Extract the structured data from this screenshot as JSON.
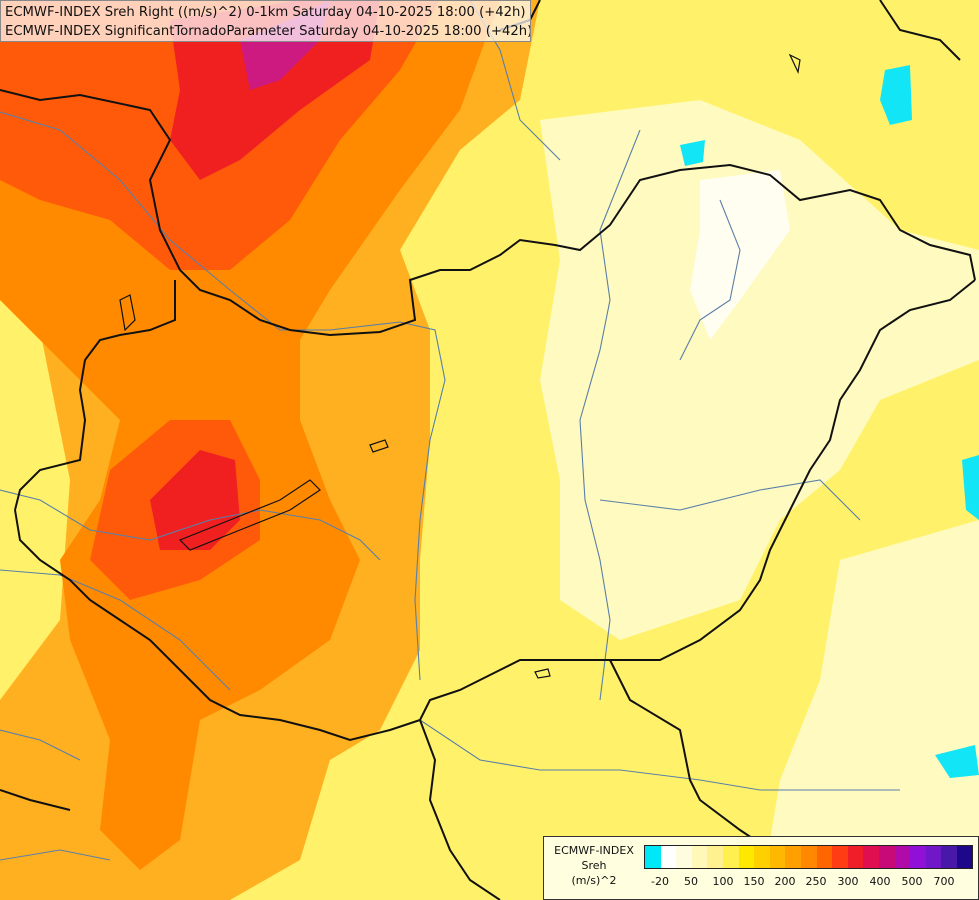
{
  "header": {
    "line1": "ECMWF-INDEX Sreh Right ((m/s)^2) 0-1km Saturday 04-10-2025 18:00 (+42h)",
    "line2": "ECMWF-INDEX SignificantTornadoParameter Saturday 04-10-2025 18:00 (+42h)"
  },
  "legend": {
    "model": "ECMWF-INDEX",
    "variable": "Sreh",
    "unit": "(m/s)^2",
    "tick_labels": [
      "-20",
      "50",
      "100",
      "150",
      "200",
      "250",
      "300",
      "400",
      "500",
      "700"
    ],
    "colors": [
      "#00e8f8",
      "#ffffff",
      "#fffde0",
      "#fff8b8",
      "#fff090",
      "#fff050",
      "#ffe800",
      "#ffd000",
      "#ffb800",
      "#ffa000",
      "#ff8800",
      "#ff6600",
      "#ff3c14",
      "#f01e28",
      "#e01050",
      "#c80a78",
      "#b00aa8",
      "#9010d8",
      "#7018c8",
      "#4818a8",
      "#1c0888"
    ]
  },
  "colors": {
    "map_background": "#fffbd0",
    "border_line": "#111111",
    "river_line": "#5a7fa8"
  }
}
